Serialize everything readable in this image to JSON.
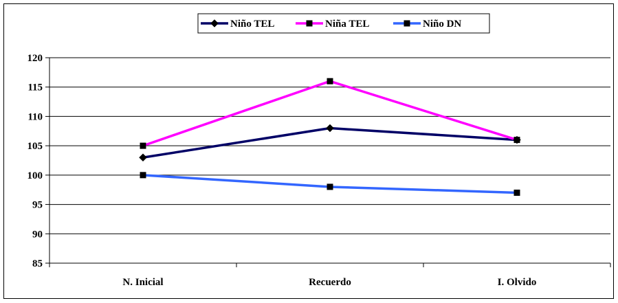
{
  "chart_data": {
    "type": "line",
    "title": "",
    "xlabel": "",
    "ylabel": "",
    "categories": [
      "N. Inicial",
      "Recuerdo",
      "I. Olvido"
    ],
    "ylim": [
      85,
      120
    ],
    "yticks": [
      85,
      90,
      95,
      100,
      105,
      110,
      115,
      120
    ],
    "grid": "horizontal",
    "legend_position": "top-center",
    "series": [
      {
        "name": "Niño TEL",
        "values": [
          103,
          108,
          106
        ],
        "color": "#000066",
        "marker": "diamond"
      },
      {
        "name": "Niña TEL",
        "values": [
          105,
          116,
          106
        ],
        "color": "#ff00ff",
        "marker": "square"
      },
      {
        "name": "Niño DN",
        "values": [
          100,
          98,
          97
        ],
        "color": "#3366ff",
        "marker": "square"
      }
    ]
  }
}
